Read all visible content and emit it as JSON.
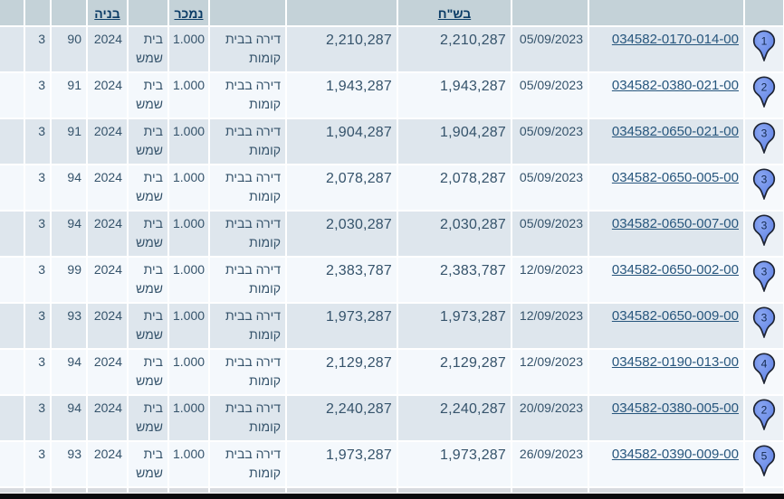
{
  "table": {
    "headers": {
      "year_built": "בניה",
      "portion_sold": "נמכר",
      "price_ils": "בש\"ח"
    },
    "rows": [
      {
        "pin": "1",
        "parcel": "034582-0170-014-00",
        "date": "05/09/2023",
        "price_ils": "2,210,287",
        "price_second": "2,210,287",
        "property_type": "דירה בבית קומות",
        "portion_sold": "1.000",
        "city": "בית שמש",
        "year_built": "2024",
        "area_sqm": "90",
        "rooms": "3"
      },
      {
        "pin": "2",
        "parcel": "034582-0380-021-00",
        "date": "05/09/2023",
        "price_ils": "1,943,287",
        "price_second": "1,943,287",
        "property_type": "דירה בבית קומות",
        "portion_sold": "1.000",
        "city": "בית שמש",
        "year_built": "2024",
        "area_sqm": "91",
        "rooms": "3"
      },
      {
        "pin": "3",
        "parcel": "034582-0650-021-00",
        "date": "05/09/2023",
        "price_ils": "1,904,287",
        "price_second": "1,904,287",
        "property_type": "דירה בבית קומות",
        "portion_sold": "1.000",
        "city": "בית שמש",
        "year_built": "2024",
        "area_sqm": "91",
        "rooms": "3"
      },
      {
        "pin": "3",
        "parcel": "034582-0650-005-00",
        "date": "05/09/2023",
        "price_ils": "2,078,287",
        "price_second": "2,078,287",
        "property_type": "דירה בבית קומות",
        "portion_sold": "1.000",
        "city": "בית שמש",
        "year_built": "2024",
        "area_sqm": "94",
        "rooms": "3"
      },
      {
        "pin": "3",
        "parcel": "034582-0650-007-00",
        "date": "05/09/2023",
        "price_ils": "2,030,287",
        "price_second": "2,030,287",
        "property_type": "דירה בבית קומות",
        "portion_sold": "1.000",
        "city": "בית שמש",
        "year_built": "2024",
        "area_sqm": "94",
        "rooms": "3"
      },
      {
        "pin": "3",
        "parcel": "034582-0650-002-00",
        "date": "12/09/2023",
        "price_ils": "2,383,787",
        "price_second": "2,383,787",
        "property_type": "דירה בבית קומות",
        "portion_sold": "1.000",
        "city": "בית שמש",
        "year_built": "2024",
        "area_sqm": "99",
        "rooms": "3"
      },
      {
        "pin": "3",
        "parcel": "034582-0650-009-00",
        "date": "12/09/2023",
        "price_ils": "1,973,287",
        "price_second": "1,973,287",
        "property_type": "דירה בבית קומות",
        "portion_sold": "1.000",
        "city": "בית שמש",
        "year_built": "2024",
        "area_sqm": "93",
        "rooms": "3"
      },
      {
        "pin": "4",
        "parcel": "034582-0190-013-00",
        "date": "12/09/2023",
        "price_ils": "2,129,287",
        "price_second": "2,129,287",
        "property_type": "דירה בבית קומות",
        "portion_sold": "1.000",
        "city": "בית שמש",
        "year_built": "2024",
        "area_sqm": "94",
        "rooms": "3"
      },
      {
        "pin": "2",
        "parcel": "034582-0380-005-00",
        "date": "20/09/2023",
        "price_ils": "2,240,287",
        "price_second": "2,240,287",
        "property_type": "דירה בבית קומות",
        "portion_sold": "1.000",
        "city": "בית שמש",
        "year_built": "2024",
        "area_sqm": "94",
        "rooms": "3"
      },
      {
        "pin": "5",
        "parcel": "034582-0390-009-00",
        "date": "26/09/2023",
        "price_ils": "1,973,287",
        "price_second": "1,973,287",
        "property_type": "דירה בבית קומות",
        "portion_sold": "1.000",
        "city": "בית שמש",
        "year_built": "2024",
        "area_sqm": "93",
        "rooms": "3"
      }
    ]
  },
  "colors": {
    "header_bg": "#c4d2d8",
    "row_odd_bg": "#dee6ed",
    "row_even_bg": "#f4f8fc",
    "text": "#35536b",
    "link": "#27567d",
    "header_link": "#0b3c66",
    "pin_fill": "#6b8cec",
    "pin_outline": "#1e2433",
    "bottom_bar": "#0b0b0d"
  }
}
